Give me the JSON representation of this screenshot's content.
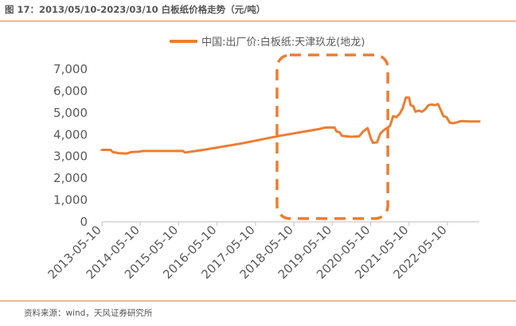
{
  "figure": {
    "title": "图 17：2013/05/10-2023/03/10 白板纸价格走势（元/吨）",
    "source": "资料来源：wind，天风证券研究所"
  },
  "colors": {
    "series": "#ED7D31",
    "highlight": "#ED7D31",
    "rule": "#ED7D31",
    "axis": "#BFBFBF"
  },
  "chart_data": {
    "type": "line",
    "title": "",
    "xlabel": "",
    "ylabel": "",
    "ylim": [
      0,
      7000
    ],
    "yticks": [
      0,
      1000,
      2000,
      3000,
      4000,
      5000,
      6000,
      7000
    ],
    "ytick_labels": [
      "0",
      "1,000",
      "2,000",
      "3,000",
      "4,000",
      "5,000",
      "6,000",
      "7,000"
    ],
    "xlim": [
      "2013-05-10",
      "2023-03-10"
    ],
    "xticks": [
      "2013-05-10",
      "2014-05-10",
      "2015-05-10",
      "2016-05-10",
      "2017-05-10",
      "2018-05-10",
      "2019-05-10",
      "2020-05-10",
      "2021-05-10",
      "2022-05-10"
    ],
    "xtick_labels": [
      "2013-05-10",
      "2014-05-10",
      "2015-05-10",
      "2016-05-10",
      "2017-05-10",
      "2018-05-10",
      "2019-05-10",
      "2020-05-10",
      "2021-05-10",
      "2022-05-10"
    ],
    "grid": false,
    "legend_position": "top-center",
    "highlight_box": {
      "type": "dashed-rounded-rect",
      "x_range": [
        "2017-12-01",
        "2020-10-20"
      ],
      "y_range": [
        150,
        7650
      ]
    },
    "series": [
      {
        "name": "中国:出厂价:白板纸:天津玖龙(地龙)",
        "points": [
          [
            "2013-05-10",
            3300
          ],
          [
            "2013-08-01",
            3300
          ],
          [
            "2013-08-20",
            3200
          ],
          [
            "2013-10-15",
            3150
          ],
          [
            "2014-01-01",
            3130
          ],
          [
            "2014-02-15",
            3200
          ],
          [
            "2014-05-01",
            3220
          ],
          [
            "2014-06-01",
            3250
          ],
          [
            "2015-06-20",
            3250
          ],
          [
            "2015-07-10",
            3180
          ],
          [
            "2016-01-01",
            3300
          ],
          [
            "2017-01-01",
            3600
          ],
          [
            "2018-01-01",
            3950
          ],
          [
            "2019-01-01",
            4250
          ],
          [
            "2019-03-01",
            4320
          ],
          [
            "2019-06-01",
            4330
          ],
          [
            "2019-06-20",
            4150
          ],
          [
            "2019-07-20",
            4100
          ],
          [
            "2019-08-10",
            3950
          ],
          [
            "2019-11-01",
            3900
          ],
          [
            "2020-01-20",
            3920
          ],
          [
            "2020-03-01",
            4150
          ],
          [
            "2020-04-10",
            4300
          ],
          [
            "2020-05-10",
            3850
          ],
          [
            "2020-06-01",
            3620
          ],
          [
            "2020-07-10",
            3650
          ],
          [
            "2020-08-10",
            4050
          ],
          [
            "2020-09-10",
            4200
          ],
          [
            "2020-11-10",
            4400
          ],
          [
            "2020-12-10",
            4850
          ],
          [
            "2021-01-10",
            4800
          ],
          [
            "2021-02-10",
            4950
          ],
          [
            "2021-03-10",
            5200
          ],
          [
            "2021-04-10",
            5700
          ],
          [
            "2021-05-10",
            5700
          ],
          [
            "2021-05-25",
            5350
          ],
          [
            "2021-06-20",
            5300
          ],
          [
            "2021-07-10",
            5050
          ],
          [
            "2021-08-10",
            5100
          ],
          [
            "2021-09-10",
            5050
          ],
          [
            "2021-10-10",
            5150
          ],
          [
            "2021-11-10",
            5350
          ],
          [
            "2021-12-10",
            5380
          ],
          [
            "2022-01-10",
            5350
          ],
          [
            "2022-02-10",
            5400
          ],
          [
            "2022-03-10",
            5100
          ],
          [
            "2022-04-01",
            4850
          ],
          [
            "2022-05-01",
            4800
          ],
          [
            "2022-06-01",
            4550
          ],
          [
            "2022-07-01",
            4520
          ],
          [
            "2022-08-01",
            4550
          ],
          [
            "2022-09-01",
            4600
          ],
          [
            "2022-10-01",
            4620
          ],
          [
            "2022-12-01",
            4600
          ],
          [
            "2023-03-10",
            4600
          ]
        ]
      }
    ]
  }
}
